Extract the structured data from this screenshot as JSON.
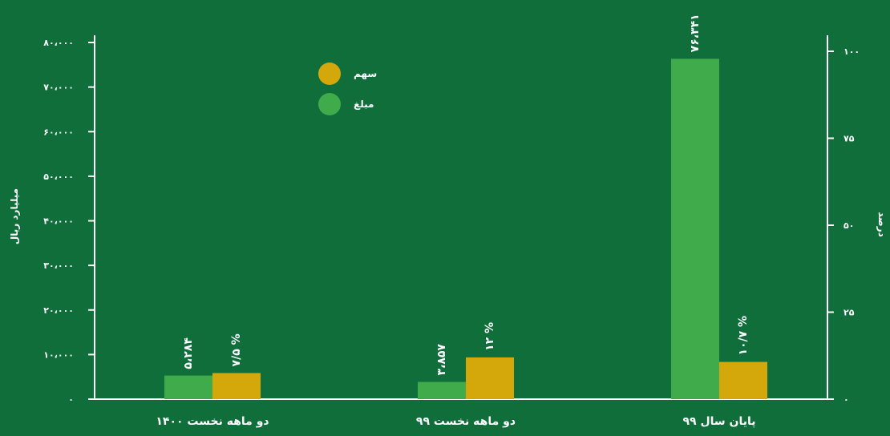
{
  "colors": {
    "background": "#0f6e3a",
    "axis": "#ffffff",
    "series_amount": "#3fab4b",
    "series_share": "#d4a80a",
    "text": "#ffffff"
  },
  "chart_data": {
    "type": "bar",
    "categories": [
      "دو ماهه نخست ۱۴۰۰",
      "دو ماهه نخست ۹۹",
      "پایان سال ۹۹"
    ],
    "series": [
      {
        "name": "مبلغ",
        "axis": "left",
        "values": [
          5284,
          3857,
          76341
        ],
        "labels": [
          "۵،۲۸۴",
          "۳،۸۵۷",
          "۷۶،۳۴۱"
        ]
      },
      {
        "name": "سهم",
        "axis": "right",
        "values": [
          7.5,
          12,
          10.7
        ],
        "labels": [
          "۷/۵ %",
          "۱۲ %",
          "۱۰/۷ %"
        ]
      }
    ],
    "y_left": {
      "label": "میلیارد ریال",
      "lim": [
        0,
        80000
      ],
      "ticks": [
        0,
        10000,
        20000,
        30000,
        40000,
        50000,
        60000,
        70000,
        80000
      ],
      "tick_labels": [
        "۰",
        "۱۰،۰۰۰",
        "۲۰،۰۰۰",
        "۳۰،۰۰۰",
        "۴۰،۰۰۰",
        "۵۰،۰۰۰",
        "۶۰،۰۰۰",
        "۷۰،۰۰۰",
        "۸۰،۰۰۰"
      ]
    },
    "y_right": {
      "label": "درصد",
      "lim": [
        0,
        100
      ],
      "ticks": [
        0,
        25,
        50,
        75,
        100
      ],
      "tick_labels": [
        "۰",
        "۲۵",
        "۵۰",
        "۷۵",
        "۱۰۰"
      ]
    },
    "legend": {
      "placement": "top-left",
      "entries": [
        {
          "series": 1,
          "label": "سهم"
        },
        {
          "series": 0,
          "label": "مبلغ"
        }
      ]
    },
    "grid": false
  }
}
